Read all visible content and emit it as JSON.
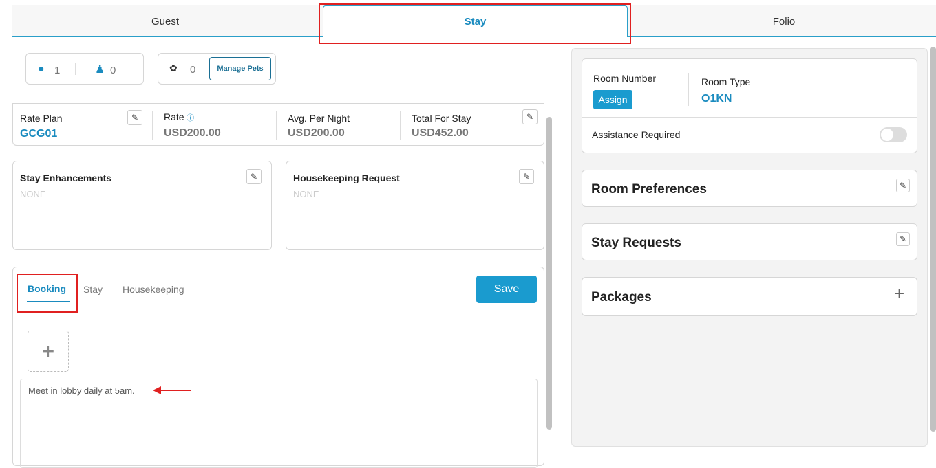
{
  "tabs": [
    {
      "label": "Guest"
    },
    {
      "label": "Stay"
    },
    {
      "label": "Folio"
    }
  ],
  "occupancy": {
    "adults": "1",
    "children": "0",
    "pets": "0",
    "manage_pets": "Manage Pets"
  },
  "rates": {
    "rate_plan_label": "Rate Plan",
    "rate_plan": "GCG01",
    "rate_label": "Rate",
    "rate": "USD200.00",
    "avg_label": "Avg. Per Night",
    "avg": "USD200.00",
    "total_label": "Total For Stay",
    "total": "USD452.00"
  },
  "enhancements": {
    "title": "Stay Enhancements",
    "value": "NONE"
  },
  "housekeeping": {
    "title": "Housekeeping Request",
    "value": "NONE"
  },
  "notes": {
    "tabs": [
      {
        "label": "Booking"
      },
      {
        "label": "Stay"
      },
      {
        "label": "Housekeeping"
      }
    ],
    "save": "Save",
    "text": "Meet in lobby daily at 5am."
  },
  "room": {
    "number_label": "Room Number",
    "assign": "Assign",
    "type_label": "Room Type",
    "type": "O1KN",
    "assistance_label": "Assistance Required",
    "assistance_on": false
  },
  "sections": [
    {
      "title": "Room Preferences"
    },
    {
      "title": "Stay Requests"
    },
    {
      "title": "Packages"
    }
  ],
  "colors": {
    "accent": "#1a8bbf",
    "annotation": "#e02020"
  }
}
